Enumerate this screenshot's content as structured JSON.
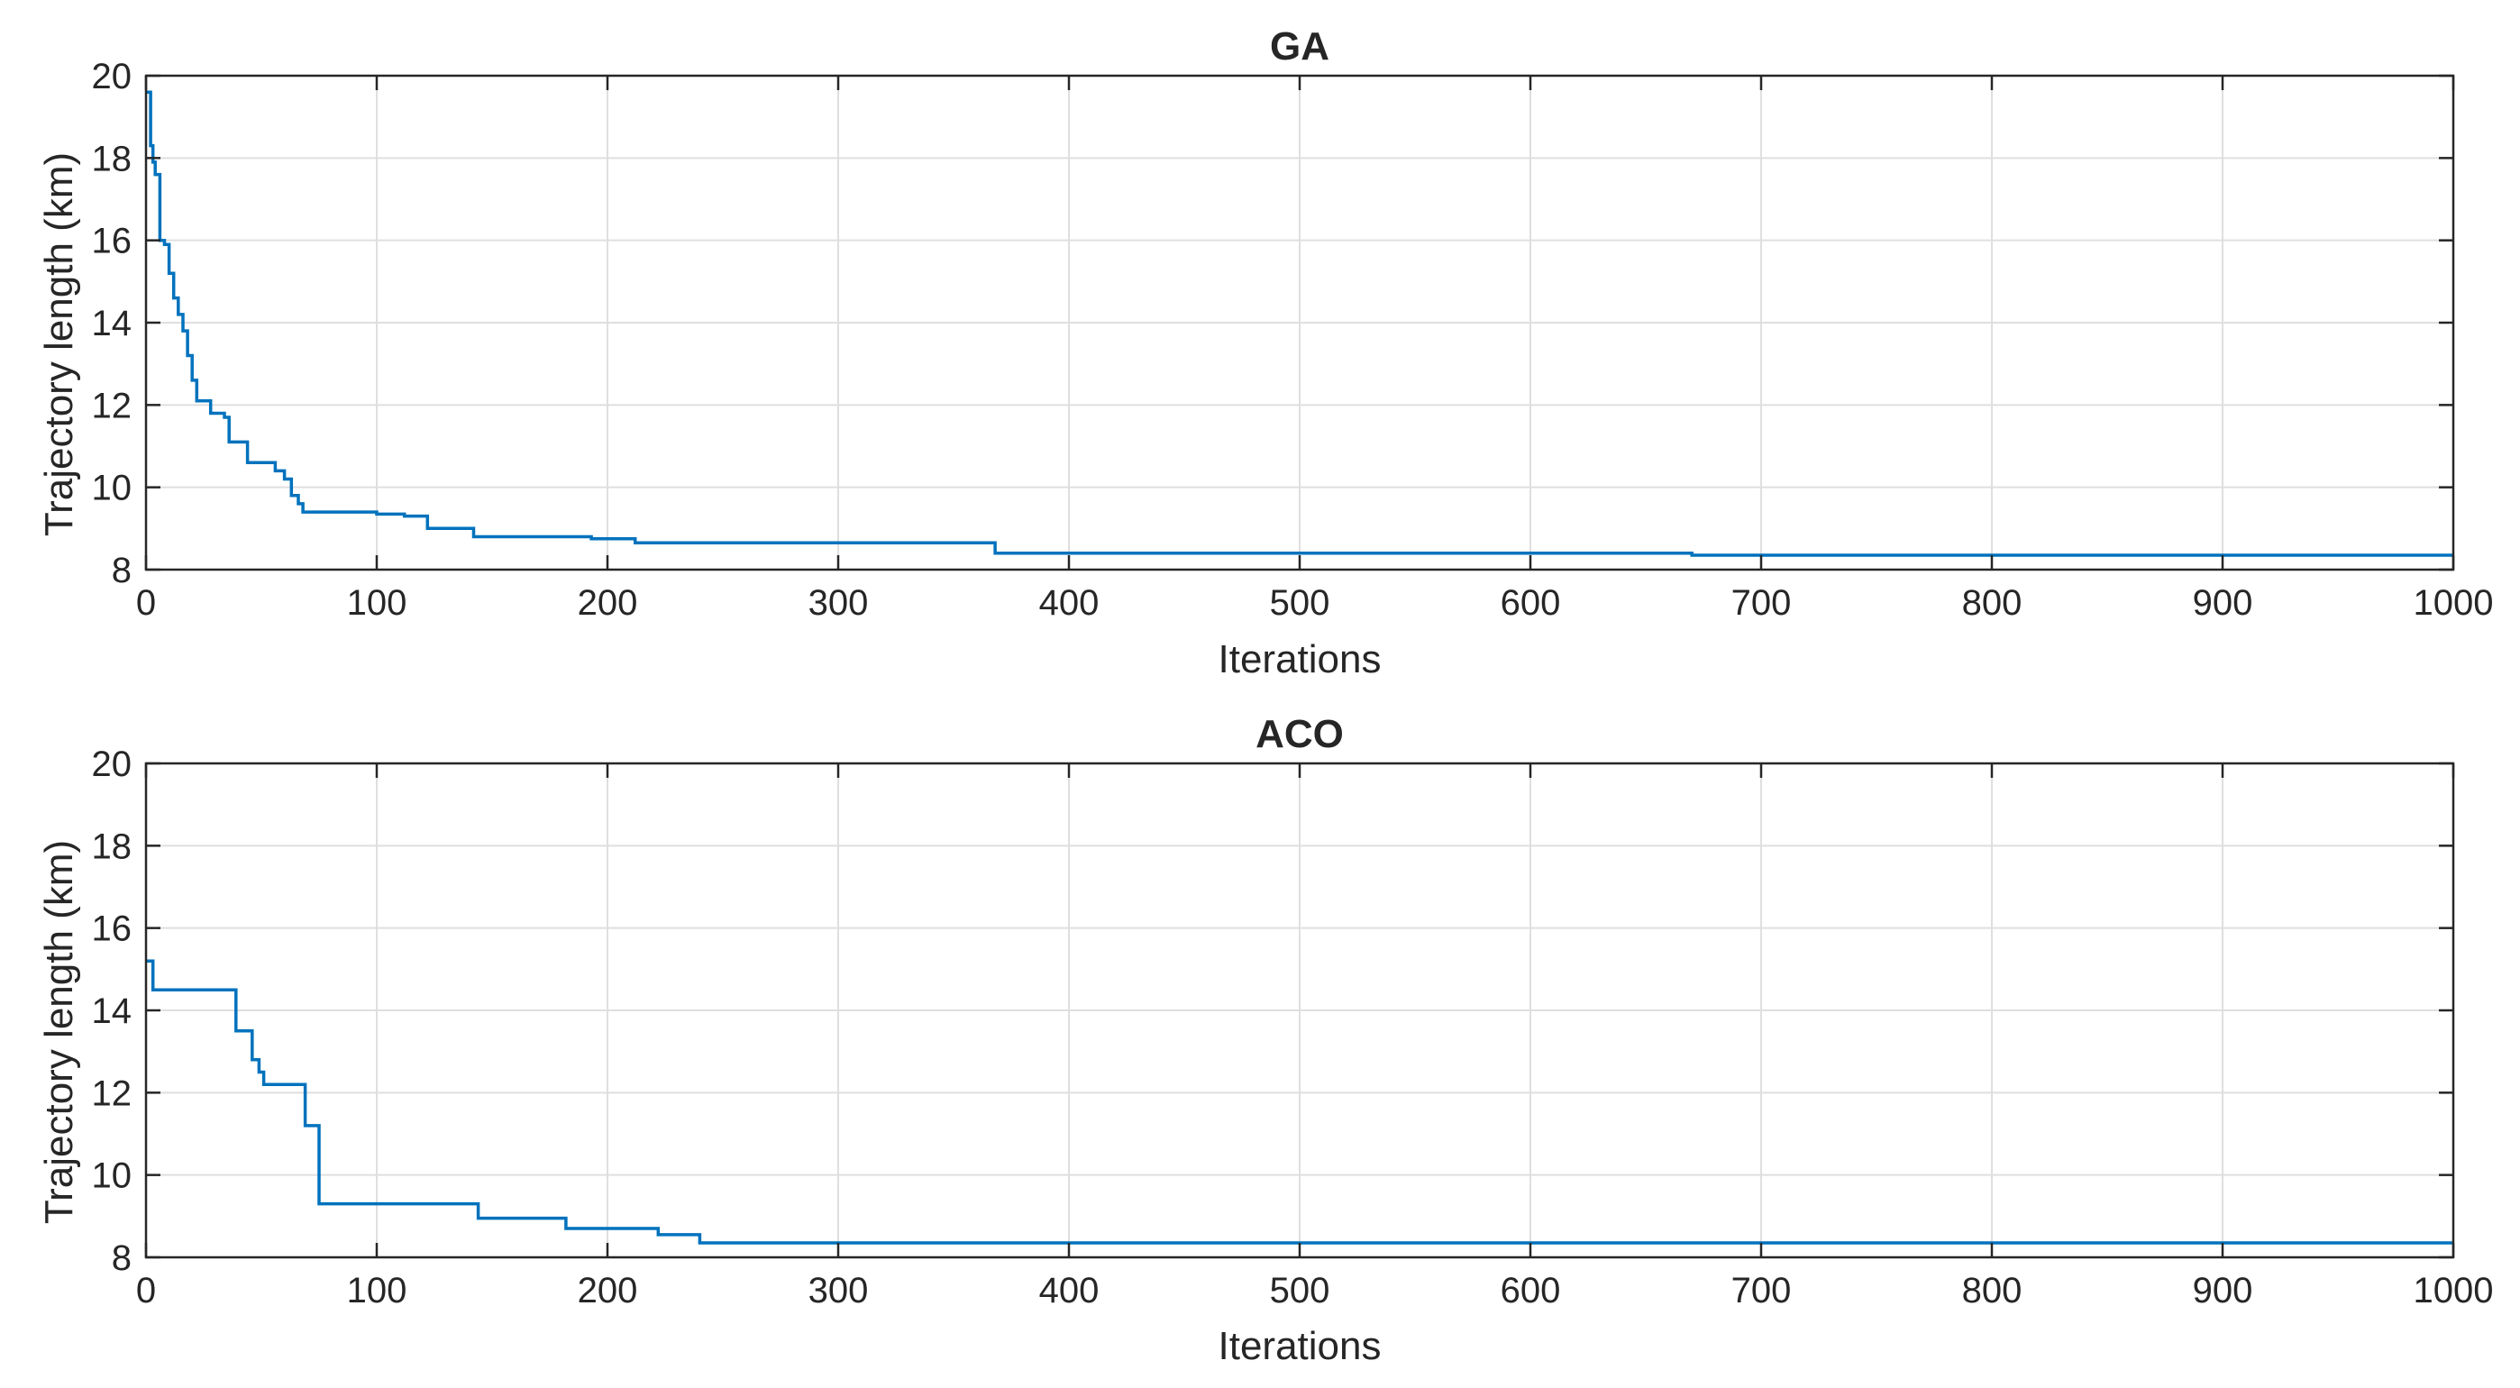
{
  "chart_data": [
    {
      "type": "line",
      "title": "GA",
      "xlabel": "Iterations",
      "ylabel": "Trajectory length (km)",
      "xlim": [
        0,
        1000
      ],
      "ylim": [
        8,
        20
      ],
      "xticks": [
        0,
        100,
        200,
        300,
        400,
        500,
        600,
        700,
        800,
        900,
        1000
      ],
      "yticks": [
        8,
        10,
        12,
        14,
        16,
        18,
        20
      ],
      "grid": true,
      "series": [
        {
          "color": "#0072BD",
          "step": true,
          "x": [
            0,
            2,
            3,
            4,
            6,
            8,
            10,
            12,
            14,
            16,
            18,
            20,
            22,
            28,
            34,
            36,
            44,
            56,
            60,
            63,
            66,
            68,
            100,
            112,
            122,
            142,
            193,
            212,
            368,
            670,
            1000
          ],
          "y": [
            19.6,
            18.3,
            17.9,
            17.6,
            16.0,
            15.9,
            15.2,
            14.6,
            14.2,
            13.8,
            13.2,
            12.6,
            12.1,
            11.8,
            11.7,
            11.1,
            10.6,
            10.4,
            10.2,
            9.8,
            9.6,
            9.4,
            9.35,
            9.3,
            9.0,
            8.8,
            8.75,
            8.65,
            8.4,
            8.35,
            8.35
          ]
        }
      ]
    },
    {
      "type": "line",
      "title": "ACO",
      "xlabel": "Iterations",
      "ylabel": "Trajectory length (km)",
      "xlim": [
        0,
        1000
      ],
      "ylim": [
        8,
        20
      ],
      "xticks": [
        0,
        100,
        200,
        300,
        400,
        500,
        600,
        700,
        800,
        900,
        1000
      ],
      "yticks": [
        8,
        10,
        12,
        14,
        16,
        18,
        20
      ],
      "grid": true,
      "series": [
        {
          "color": "#0072BD",
          "step": true,
          "x": [
            0,
            3,
            39,
            46,
            49,
            51,
            69,
            71,
            75,
            144,
            182,
            222,
            240,
            1000
          ],
          "y": [
            15.2,
            14.5,
            13.5,
            12.8,
            12.5,
            12.2,
            11.2,
            11.2,
            9.3,
            8.95,
            8.7,
            8.55,
            8.35,
            8.35
          ]
        }
      ]
    }
  ]
}
